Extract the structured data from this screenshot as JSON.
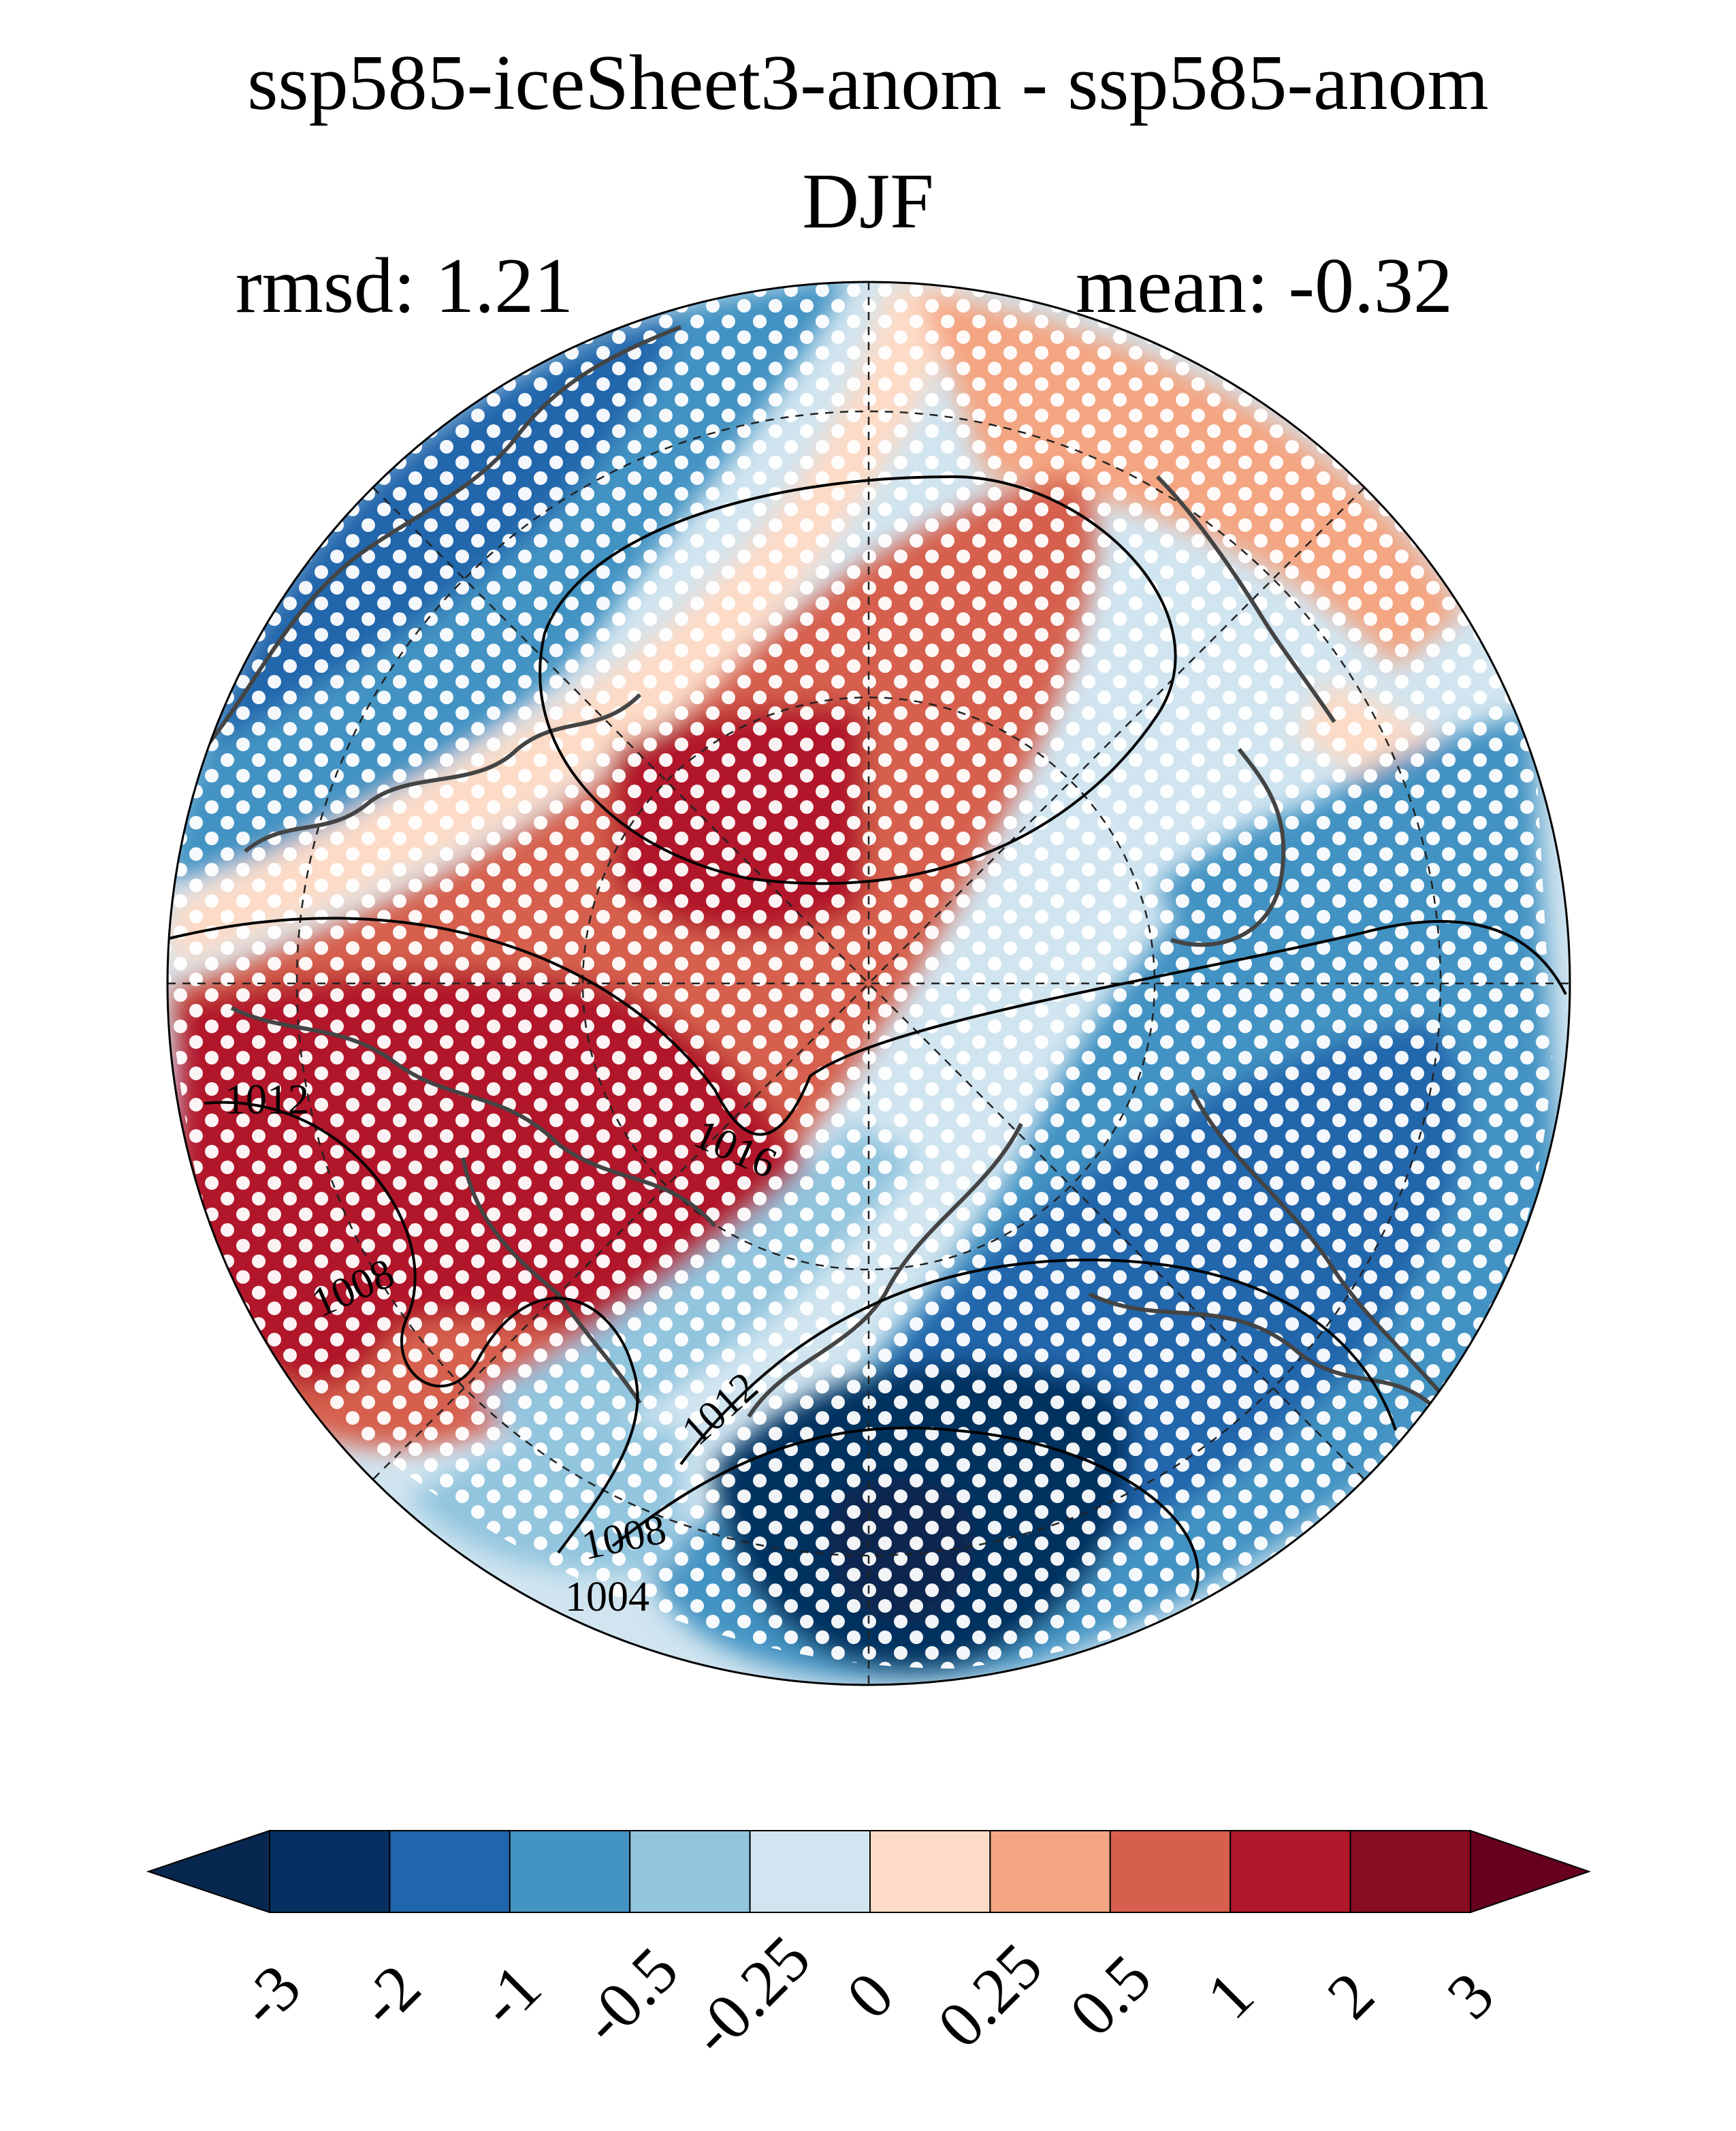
{
  "title": {
    "line1": "ssp585-iceSheet3-anom - ssp585-anom",
    "line2": "DJF"
  },
  "stats": {
    "rmsd": "rmsd: 1.21",
    "mean": "mean: -0.32"
  },
  "map": {
    "projection": "north polar stereographic",
    "field": "anomaly difference (filled)",
    "stippling": "white dots where significant",
    "contour_labels": [
      "1012",
      "1016",
      "1008",
      "1012",
      "1008",
      "1004"
    ],
    "region_levels": {
      "far_neg": "-3 or below",
      "strong_neg": "-2 to -1",
      "mid_neg": "-1 to -0.5",
      "weak_neg": "-0.5 to -0.25",
      "faint_neg": "-0.25 to 0",
      "faint_pos": "0 to 0.25",
      "weak_pos": "0.25 to 0.5",
      "mid_pos": "0.5 to 1",
      "strong_pos": "1 to 2"
    }
  },
  "colorbar": {
    "ticks": [
      "-3",
      "-2",
      "-1",
      "-0.5",
      "-0.25",
      "0",
      "0.25",
      "0.5",
      "1",
      "2",
      "3"
    ],
    "colors": [
      "#08274f",
      "#053061",
      "#2166ac",
      "#4393c3",
      "#92c5de",
      "#d1e5f0",
      "#fddbc7",
      "#f4a582",
      "#d6604d",
      "#b2182b",
      "#870b22",
      "#67001f"
    ],
    "extend": "both"
  }
}
